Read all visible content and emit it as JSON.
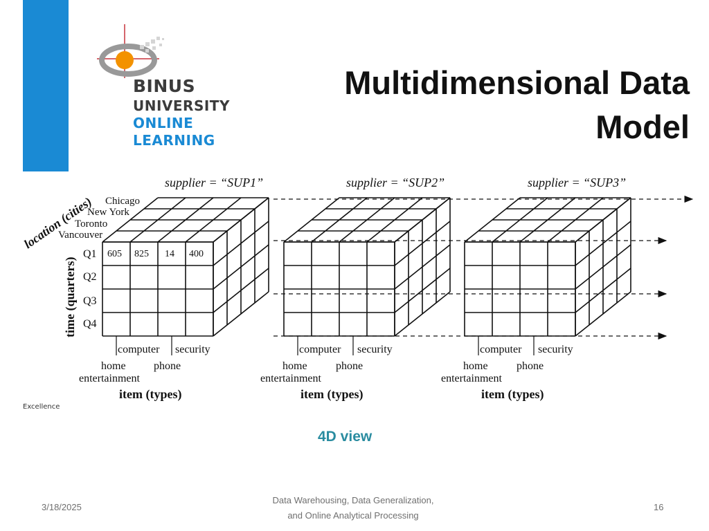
{
  "slide": {
    "title_line1": "Multidimensional Data",
    "title_line2": "Model",
    "caption": "4D view",
    "footer_date": "3/18/2025",
    "footer_line1": "Data Warehousing, Data Generalization,",
    "footer_line2": "and Online Analytical Processing",
    "page_number": "16",
    "excellence_text": "Excellence"
  },
  "logo": {
    "line1": "BINUS",
    "line2": "UNIVERSITY",
    "line3": "ONLINE",
    "line4": "LEARNING",
    "colors": {
      "dark": "#3b3b3b",
      "blue": "#1a8ad4",
      "orange": "#f39200"
    }
  },
  "diagram": {
    "suppliers": [
      "supplier = “SUP1”",
      "supplier = “SUP2”",
      "supplier = “SUP3”"
    ],
    "location_axis": "location (cities)",
    "locations": [
      "Chicago",
      "New York",
      "Toronto",
      "Vancouver"
    ],
    "time_axis": "time (quarters)",
    "quarters": [
      "Q1",
      "Q2",
      "Q3",
      "Q4"
    ],
    "item_axis": "item (types)",
    "items_top": [
      "computer",
      "security"
    ],
    "items_bottom": [
      "home",
      "phone"
    ],
    "items_bottom2": "entertainment",
    "values": [
      "605",
      "825",
      "14",
      "400"
    ]
  }
}
